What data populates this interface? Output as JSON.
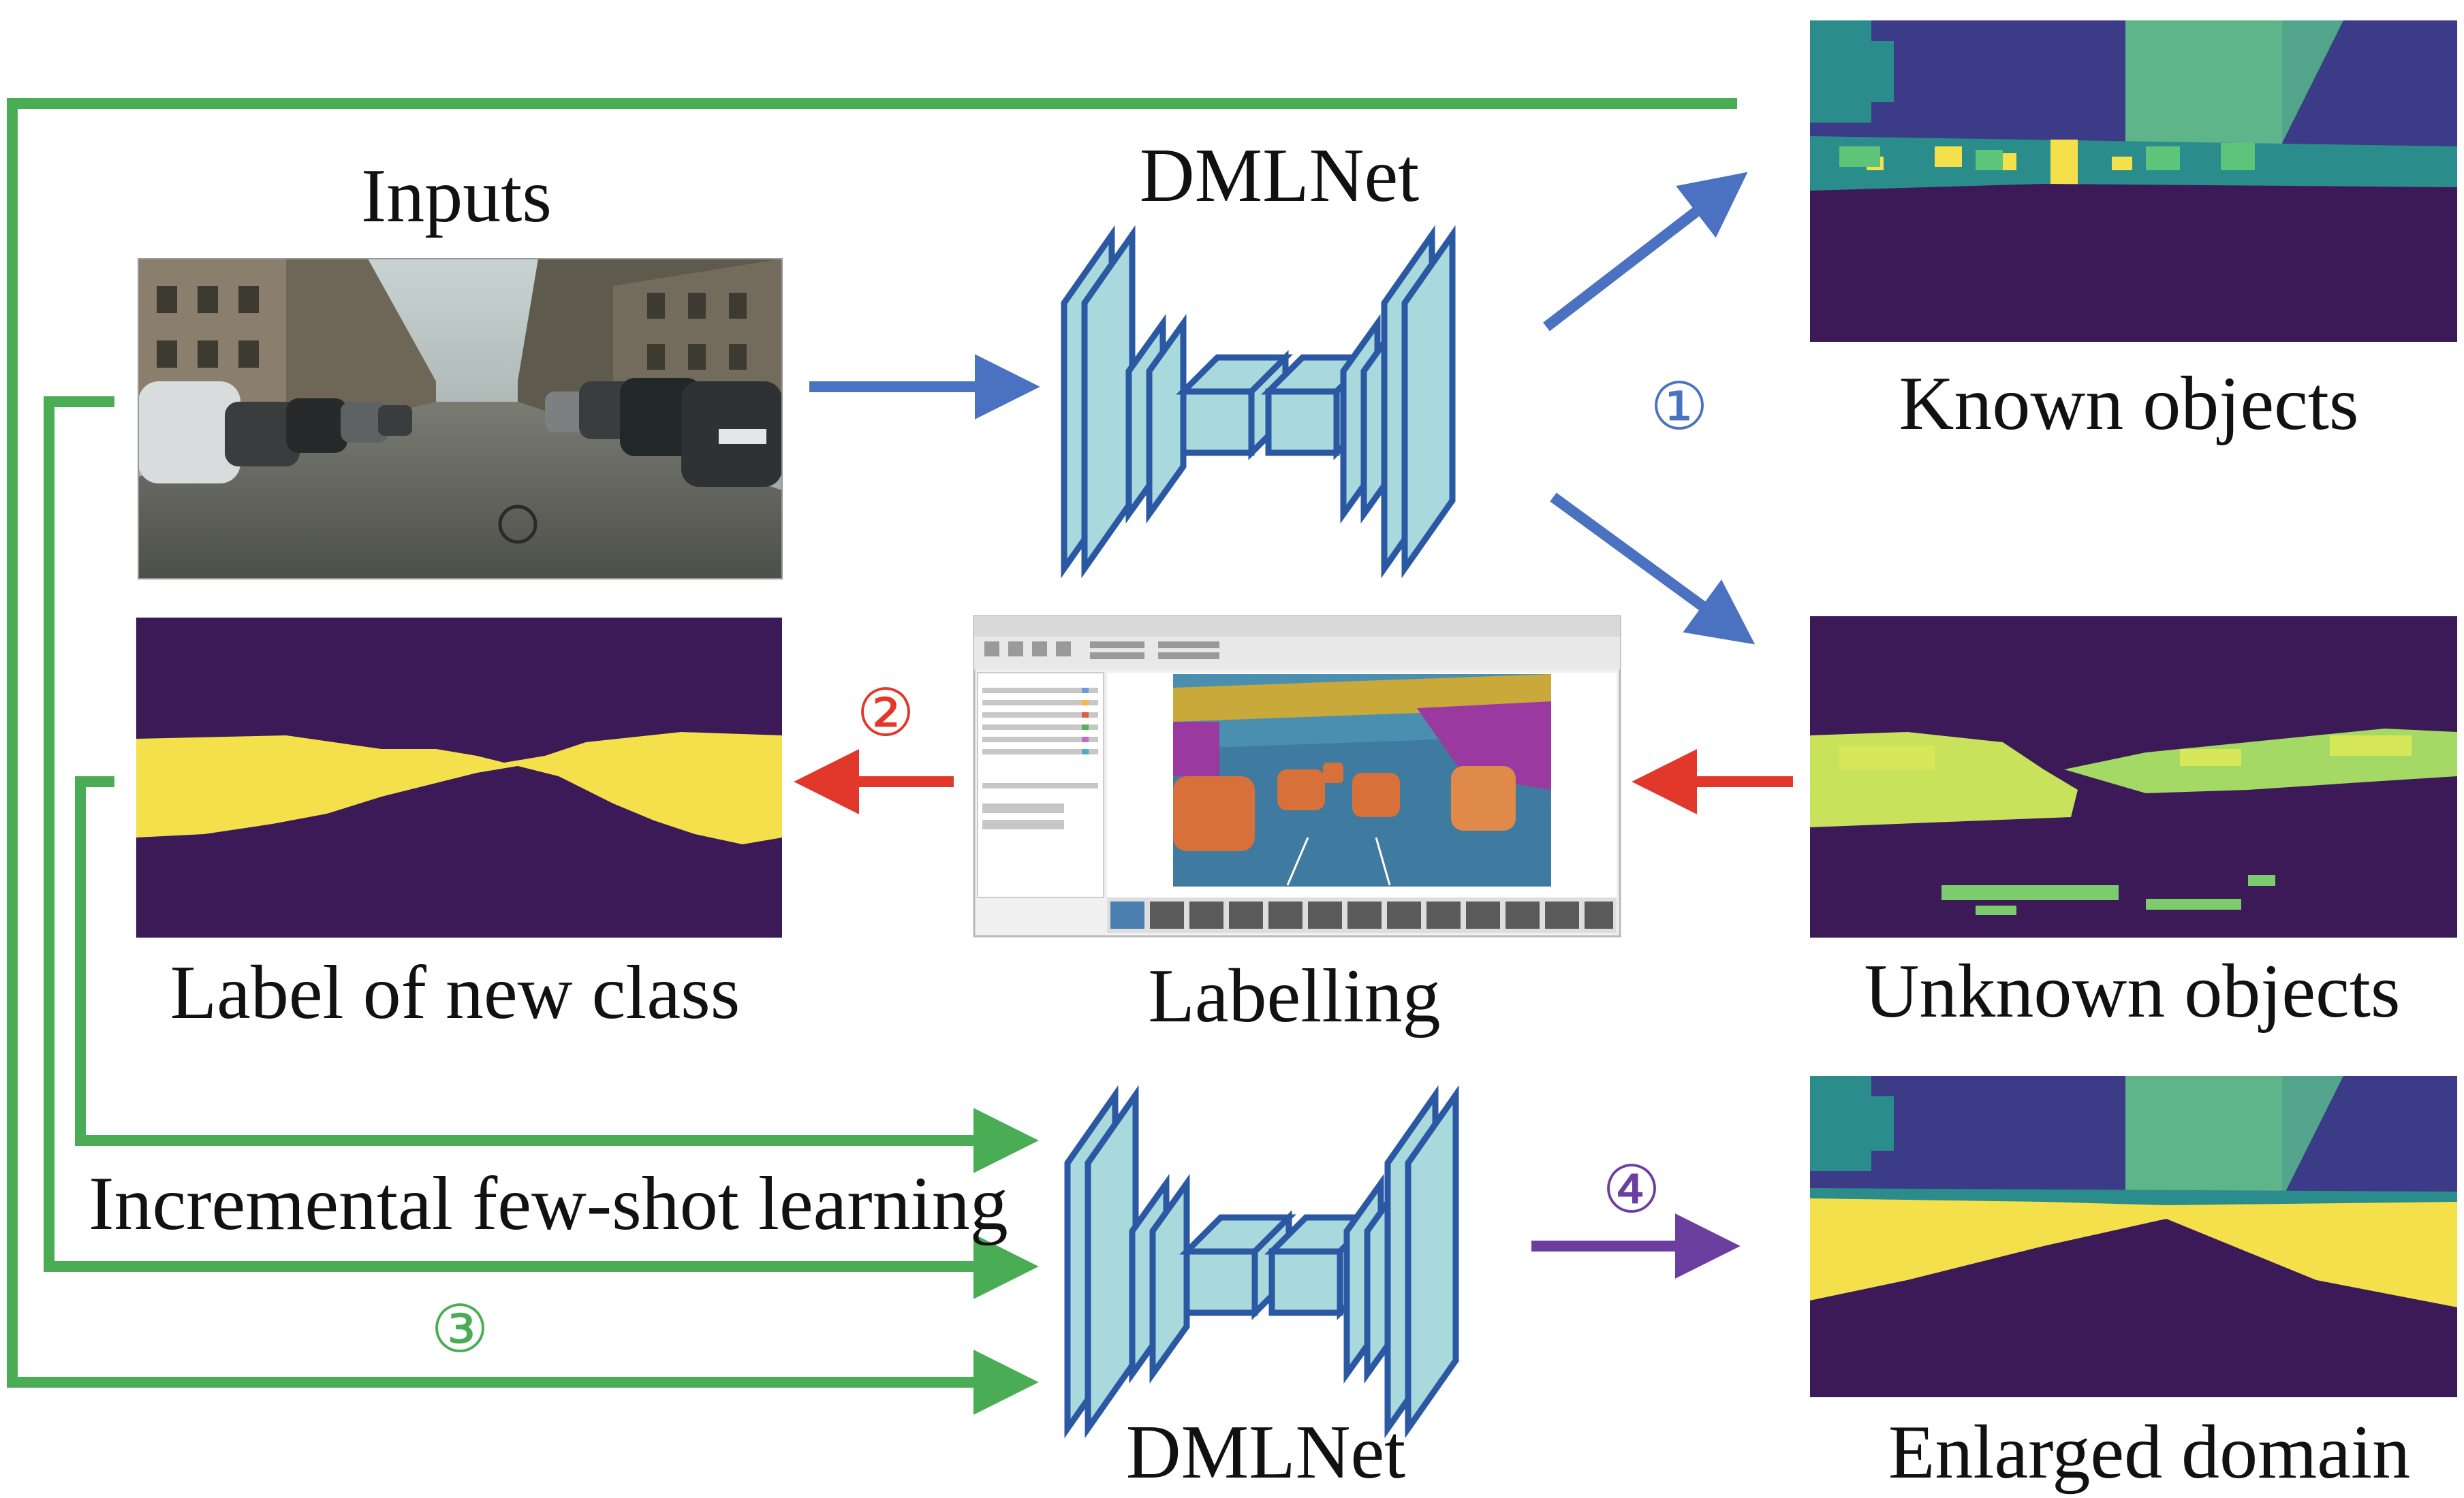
{
  "labels": {
    "inputs": "Inputs",
    "dmlnet_top": "DMLNet",
    "dmlnet_bottom": "DMLNet",
    "known_objects": "Known objects",
    "unknown_objects": "Unknown objects",
    "label_new_class": "Label of new class",
    "labelling": "Labelling",
    "incremental": "Incremental few-shot learning",
    "enlarged_domain": "Enlarged domain"
  },
  "steps": {
    "one": "①",
    "two": "②",
    "three": "③",
    "four": "④"
  },
  "colors": {
    "blue_arrow": "#4a72c0",
    "red_arrow": "#e2382c",
    "green_line": "#4aad55",
    "purple_arrow": "#6b3fa0",
    "network_fill": "#a9d9dc",
    "network_stroke": "#2a58a3",
    "seg_dark": "#3b1a57",
    "seg_yellow": "#f4e04a",
    "seg_navy": "#3b3b88",
    "seg_teal": "#2a8c8b",
    "seg_green": "#5dc47a"
  },
  "icons": {
    "street_photo": "street-scene-photo",
    "network": "encoder-decoder-network-icon",
    "labeller": "image-labeler-app-window"
  }
}
